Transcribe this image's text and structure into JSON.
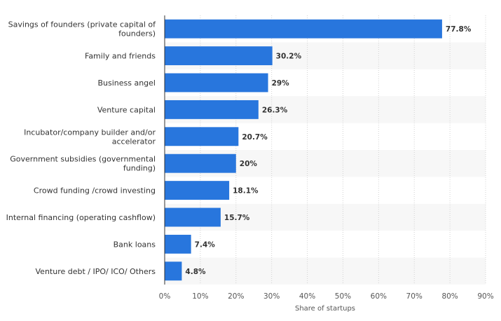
{
  "chart_data": {
    "type": "bar",
    "orientation": "horizontal",
    "title": "",
    "xlabel": "Share of startups",
    "ylabel": "",
    "xlim": [
      0,
      90
    ],
    "x_ticks": [
      0,
      10,
      20,
      30,
      40,
      50,
      60,
      70,
      80,
      90
    ],
    "x_tick_labels": [
      "0%",
      "10%",
      "20%",
      "30%",
      "40%",
      "50%",
      "60%",
      "70%",
      "80%",
      "90%"
    ],
    "grid": true,
    "categories": [
      [
        "Savings of founders (private capital of",
        "founders)"
      ],
      [
        "Family and friends"
      ],
      [
        "Business angel"
      ],
      [
        "Venture capital"
      ],
      [
        "Incubator/company builder and/or",
        "accelerator"
      ],
      [
        "Government subsidies (governmental",
        "funding)"
      ],
      [
        "Crowd funding /crowd investing"
      ],
      [
        "Internal financing (operating cashflow)"
      ],
      [
        "Bank loans"
      ],
      [
        "Venture debt / IPO/ ICO/ Others"
      ]
    ],
    "values": [
      77.8,
      30.2,
      29,
      26.3,
      20.7,
      20,
      18.1,
      15.7,
      7.4,
      4.8
    ],
    "value_labels": [
      "77.8%",
      "30.2%",
      "29%",
      "26.3%",
      "20.7%",
      "20%",
      "18.1%",
      "15.7%",
      "7.4%",
      "4.8%"
    ],
    "colors": {
      "bar": "#2876dd",
      "band": "#f7f7f7",
      "grid": "#d3d3d3",
      "axis": "#333333"
    }
  }
}
